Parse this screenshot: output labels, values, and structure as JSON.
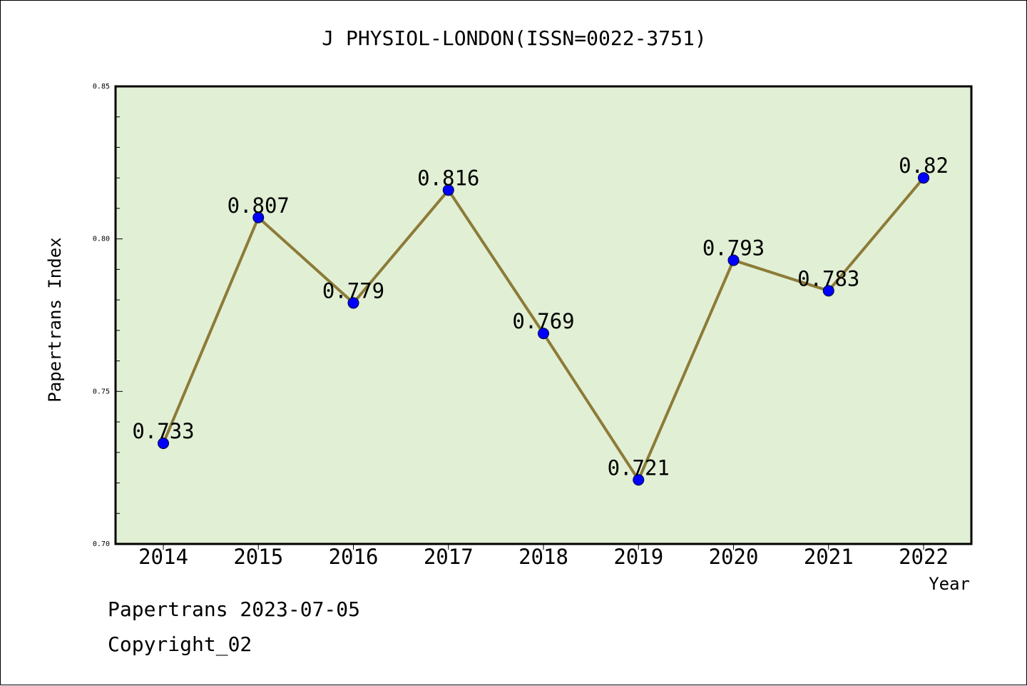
{
  "chart_data": {
    "type": "line",
    "title": "J PHYSIOL-LONDON(ISSN=0022-3751)",
    "xlabel": "Year",
    "ylabel": "Papertrans Index",
    "categories": [
      "2014",
      "2015",
      "2016",
      "2017",
      "2018",
      "2019",
      "2020",
      "2021",
      "2022"
    ],
    "series": [
      {
        "values": [
          0.733,
          0.807,
          0.779,
          0.816,
          0.769,
          0.721,
          0.793,
          0.783,
          0.82
        ],
        "data_labels": [
          "0.733",
          "0.807",
          "0.779",
          "0.816",
          "0.769",
          "0.721",
          "0.793",
          "0.783",
          "0.82"
        ]
      }
    ],
    "ylim": [
      0.7,
      0.85
    ],
    "y_ticks": [
      "0.70",
      "0.75",
      "0.80",
      "0.85"
    ],
    "y_minor_step": 0.01,
    "grid": false,
    "legend": "none"
  },
  "colors": {
    "plot_background": "#e1efd5",
    "line": "#8c7b37",
    "marker": "#0000ff",
    "axis": "#000000"
  },
  "footer": {
    "date_text": "Papertrans 2023-07-05",
    "copyright_text": "Copyright_02"
  }
}
